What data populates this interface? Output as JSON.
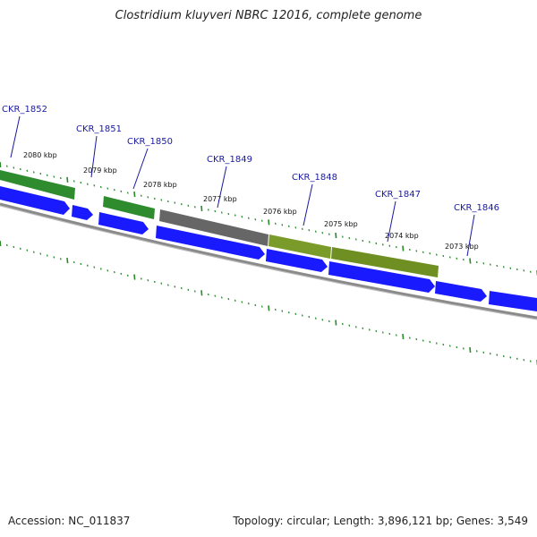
{
  "title": "Clostridium kluyveri NBRC 12016, complete genome",
  "footer": {
    "accession": "Accession: NC_011837",
    "summary": "Topology: circular; Length: 3,896,121 bp; Genes: 3,549"
  },
  "colors": {
    "cds": "#1a1aff",
    "green": "#2e8b2e",
    "olive": "#7a9a2a",
    "gray": "#666666",
    "backbone": "#8a8a8a",
    "tick": "#2a8a2a",
    "label": "#1a1aa0"
  },
  "kbp_labels": [
    "2080 kbp",
    "2079 kbp",
    "2078 kbp",
    "2077 kbp",
    "2076 kbp",
    "2075 kbp",
    "2074 kbp",
    "2073 kbp"
  ],
  "gene_labels": [
    "CKR_1852",
    "CKR_1851",
    "CKR_1850",
    "CKR_1849",
    "CKR_1848",
    "CKR_1847",
    "CKR_1846"
  ]
}
